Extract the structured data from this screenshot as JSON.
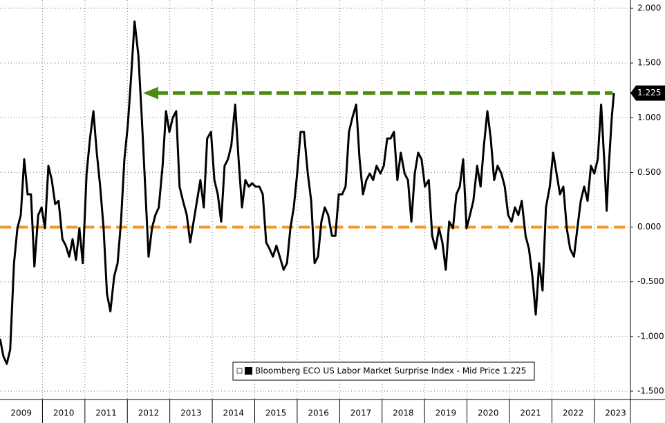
{
  "chart_data": {
    "type": "line",
    "x": [
      2009.0,
      2009.08,
      2009.16,
      2009.24,
      2009.33,
      2009.41,
      2009.49,
      2009.57,
      2009.65,
      2009.73,
      2009.81,
      2009.9,
      2009.98,
      2010.06,
      2010.14,
      2010.22,
      2010.3,
      2010.38,
      2010.47,
      2010.55,
      2010.63,
      2010.71,
      2010.79,
      2010.87,
      2010.95,
      2011.04,
      2011.12,
      2011.2,
      2011.28,
      2011.36,
      2011.44,
      2011.52,
      2011.6,
      2011.69,
      2011.77,
      2011.85,
      2011.93,
      2012.01,
      2012.09,
      2012.17,
      2012.26,
      2012.34,
      2012.42,
      2012.5,
      2012.58,
      2012.66,
      2012.74,
      2012.83,
      2012.91,
      2012.99,
      2013.07,
      2013.15,
      2013.23,
      2013.31,
      2013.4,
      2013.48,
      2013.56,
      2013.64,
      2013.72,
      2013.8,
      2013.88,
      2013.97,
      2014.05,
      2014.13,
      2014.21,
      2014.29,
      2014.37,
      2014.45,
      2014.54,
      2014.62,
      2014.7,
      2014.78,
      2014.86,
      2014.94,
      2015.02,
      2015.11,
      2015.19,
      2015.27,
      2015.35,
      2015.43,
      2015.51,
      2015.59,
      2015.68,
      2015.76,
      2015.84,
      2015.92,
      2016.0,
      2016.08,
      2016.16,
      2016.25,
      2016.33,
      2016.41,
      2016.49,
      2016.57,
      2016.65,
      2016.73,
      2016.82,
      2016.9,
      2016.98,
      2017.06,
      2017.14,
      2017.22,
      2017.3,
      2017.39,
      2017.47,
      2017.55,
      2017.63,
      2017.71,
      2017.79,
      2017.87,
      2017.96,
      2018.04,
      2018.12,
      2018.2,
      2018.28,
      2018.36,
      2018.44,
      2018.53,
      2018.61,
      2018.69,
      2018.77,
      2018.85,
      2018.93,
      2019.01,
      2019.1,
      2019.18,
      2019.26,
      2019.34,
      2019.42,
      2019.5,
      2019.58,
      2019.67,
      2019.75,
      2019.83,
      2019.91,
      2019.99,
      2020.07,
      2020.15,
      2020.24,
      2020.32,
      2020.4,
      2020.48,
      2020.56,
      2020.64,
      2020.72,
      2020.81,
      2020.89,
      2020.97,
      2021.05,
      2021.13,
      2021.21,
      2021.29,
      2021.38,
      2021.46,
      2021.54,
      2021.62,
      2021.7,
      2021.78,
      2021.86,
      2021.95,
      2022.03,
      2022.11,
      2022.19,
      2022.27,
      2022.35,
      2022.43,
      2022.52,
      2022.6,
      2022.68,
      2022.76,
      2022.84,
      2022.92,
      2023.0,
      2023.08,
      2023.16,
      2023.25,
      2023.29,
      2023.33,
      2023.41,
      2023.46
    ],
    "series": [
      {
        "name": "Bloomberg ECO US Labor Market Surprise Index - Mid Price 1.225",
        "color": "#000000",
        "values": [
          -1.02,
          -1.18,
          -1.25,
          -1.12,
          -0.33,
          -0.01,
          0.11,
          0.62,
          0.3,
          0.3,
          -0.36,
          0.11,
          0.18,
          -0.01,
          0.56,
          0.43,
          0.21,
          0.24,
          -0.11,
          -0.17,
          -0.27,
          -0.11,
          -0.3,
          -0.01,
          -0.33,
          0.49,
          0.81,
          1.06,
          0.68,
          0.37,
          -0.01,
          -0.61,
          -0.77,
          -0.45,
          -0.33,
          0.05,
          0.62,
          0.93,
          1.38,
          1.88,
          1.57,
          1.0,
          0.37,
          -0.27,
          -0.01,
          0.11,
          0.18,
          0.56,
          1.06,
          0.87,
          1.0,
          1.06,
          0.37,
          0.24,
          0.11,
          -0.14,
          0.05,
          0.24,
          0.43,
          0.18,
          0.81,
          0.87,
          0.43,
          0.3,
          0.05,
          0.56,
          0.62,
          0.75,
          1.12,
          0.62,
          0.18,
          0.43,
          0.37,
          0.4,
          0.37,
          0.37,
          0.3,
          -0.14,
          -0.2,
          -0.27,
          -0.17,
          -0.27,
          -0.39,
          -0.33,
          -0.01,
          0.18,
          0.49,
          0.87,
          0.87,
          0.49,
          0.24,
          -0.33,
          -0.27,
          0.05,
          0.18,
          0.11,
          -0.08,
          -0.08,
          0.3,
          0.3,
          0.37,
          0.87,
          1.0,
          1.12,
          0.62,
          0.3,
          0.43,
          0.49,
          0.43,
          0.56,
          0.49,
          0.56,
          0.81,
          0.81,
          0.87,
          0.43,
          0.68,
          0.49,
          0.43,
          0.05,
          0.49,
          0.68,
          0.62,
          0.37,
          0.43,
          -0.08,
          -0.2,
          -0.01,
          -0.14,
          -0.39,
          0.05,
          -0.01,
          0.3,
          0.37,
          0.62,
          -0.01,
          0.11,
          0.24,
          0.56,
          0.37,
          0.75,
          1.06,
          0.81,
          0.43,
          0.56,
          0.49,
          0.37,
          0.11,
          0.05,
          0.18,
          0.11,
          0.24,
          -0.08,
          -0.2,
          -0.45,
          -0.8,
          -0.33,
          -0.58,
          0.18,
          0.37,
          0.68,
          0.49,
          0.3,
          0.37,
          -0.01,
          -0.2,
          -0.27,
          -0.01,
          0.24,
          0.37,
          0.24,
          0.56,
          0.49,
          0.62,
          1.12,
          0.49,
          0.15,
          0.49,
          1.0,
          1.225
        ]
      }
    ],
    "xlim": [
      2009.0,
      2023.85
    ],
    "xticks": [
      {
        "value": 2009.5,
        "label": "2009"
      },
      {
        "value": 2010.5,
        "label": "2010"
      },
      {
        "value": 2011.5,
        "label": "2011"
      },
      {
        "value": 2012.5,
        "label": "2012"
      },
      {
        "value": 2013.5,
        "label": "2013"
      },
      {
        "value": 2014.5,
        "label": "2014"
      },
      {
        "value": 2015.5,
        "label": "2015"
      },
      {
        "value": 2016.5,
        "label": "2016"
      },
      {
        "value": 2017.5,
        "label": "2017"
      },
      {
        "value": 2018.5,
        "label": "2018"
      },
      {
        "value": 2019.5,
        "label": "2019"
      },
      {
        "value": 2020.5,
        "label": "2020"
      },
      {
        "value": 2021.5,
        "label": "2021"
      },
      {
        "value": 2022.5,
        "label": "2022"
      },
      {
        "value": 2023.5,
        "label": "2023"
      }
    ],
    "ylim": [
      -1.576,
      2.076
    ],
    "yticks": [
      {
        "value": 2,
        "label": "2.000"
      },
      {
        "value": 1.5,
        "label": "1.500"
      },
      {
        "value": 1,
        "label": "1.000"
      },
      {
        "value": 0.5,
        "label": "0.500"
      },
      {
        "value": 0,
        "label": "0.000"
      },
      {
        "value": -0.5,
        "label": "-0.500"
      },
      {
        "value": -1,
        "label": "-1.000"
      },
      {
        "value": -1.5,
        "label": "-1.500"
      }
    ],
    "grid": true,
    "legend": "bottom-right",
    "reference_line": {
      "value": 0,
      "color": "#f0982f"
    },
    "arrow": {
      "x": 2012.37,
      "y": 1.225,
      "color": "#4f8a10"
    },
    "end_label": {
      "value": 1.225,
      "label": "1.225"
    }
  }
}
